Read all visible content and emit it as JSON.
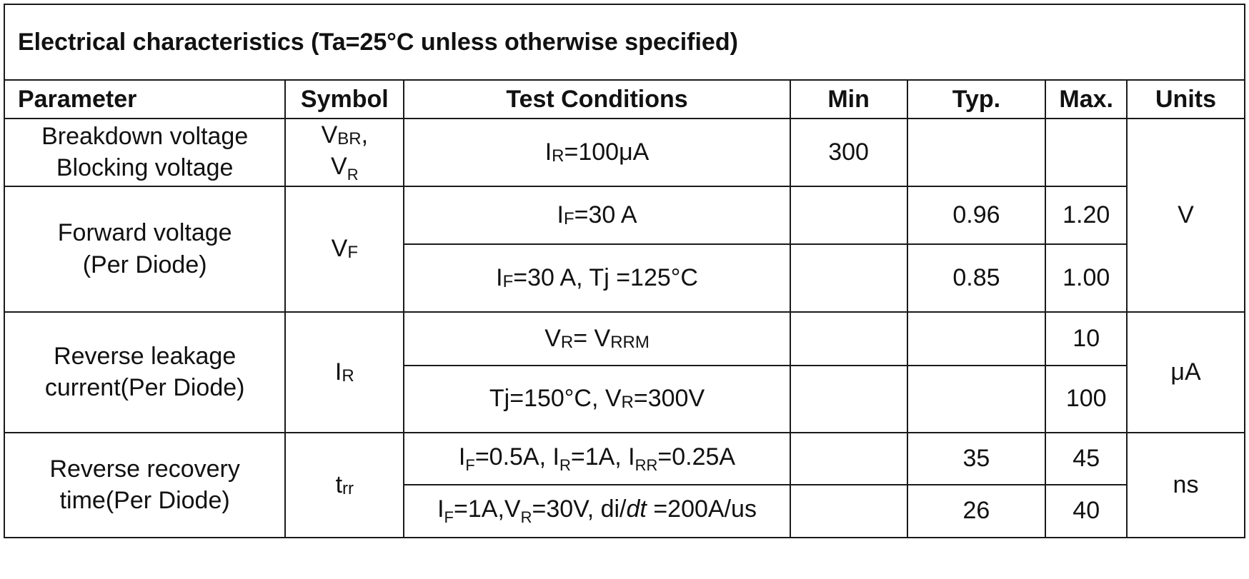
{
  "title": "Electrical characteristics (Ta=25°C unless otherwise specified)",
  "headers": {
    "parameter": "Parameter",
    "symbol": "Symbol",
    "test_conditions": "Test Conditions",
    "min": "Min",
    "typ": "Typ.",
    "max": "Max.",
    "units": "Units"
  },
  "rows": {
    "breakdown": {
      "param_line1": "Breakdown voltage",
      "param_line2": "Blocking voltage",
      "sym1_main": "V",
      "sym1_sub": "BR",
      "sym1_tail": ",",
      "sym2_main": "V",
      "sym2_sub": "R",
      "cond_main": "I",
      "cond_sub": "R",
      "cond_tail": "=100μA",
      "min": "300",
      "typ": "",
      "max": ""
    },
    "forward": {
      "param_line1": "Forward voltage",
      "param_line2": "(Per Diode)",
      "sym_main": "V",
      "sym_sub": "F",
      "cond1_main": "I",
      "cond1_sub": "F",
      "cond1_tail": "=30 A",
      "typ1": "0.96",
      "max1": "1.20",
      "cond2_main": "I",
      "cond2_sub": "F",
      "cond2_tail": "=30 A, Tj =125°C",
      "typ2": "0.85",
      "max2": "1.00"
    },
    "leakage": {
      "param_line1": "Reverse leakage",
      "param_line2": "current(Per Diode)",
      "sym_main": "I",
      "sym_sub": "R",
      "cond1_a": "V",
      "cond1_a_sub": "R",
      "cond1_b": "= V",
      "cond1_b_sub": "RRM",
      "max1": "10",
      "cond2_a": "Tj=150°C, V",
      "cond2_a_sub": "R",
      "cond2_b": "=300V",
      "max2": "100"
    },
    "recovery": {
      "param_line1": "Reverse recovery",
      "param_line2": "time(Per Diode)",
      "sym_main": "t",
      "sym_sub": "rr",
      "cond1_p1": "I",
      "cond1_s1": "F",
      "cond1_p2": "=0.5A, I",
      "cond1_s2": "R",
      "cond1_p3": "=1A, I",
      "cond1_s3": "RR",
      "cond1_p4": "=0.25A",
      "typ1": "35",
      "max1": "45",
      "cond2_p1": "I",
      "cond2_s1": "F",
      "cond2_p2": "=1A,V",
      "cond2_s2": "R",
      "cond2_p3": "=30V, di/",
      "cond2_it": "dt",
      "cond2_p4": " =200A/us",
      "typ2": "26",
      "max2": "40"
    }
  },
  "units": {
    "volt": "V",
    "microamp": "μA",
    "nanosec": "ns"
  }
}
